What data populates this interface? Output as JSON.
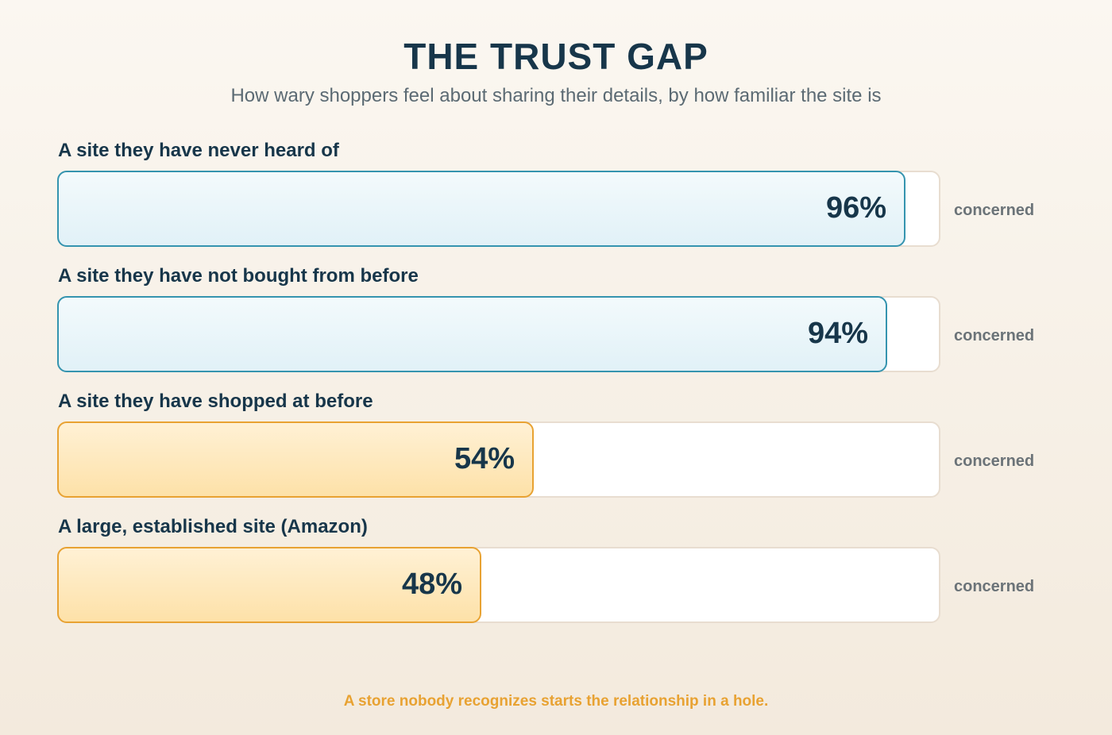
{
  "chart_data": {
    "type": "bar",
    "orientation": "horizontal",
    "title": "THE TRUST GAP",
    "subtitle": "How wary shoppers feel about sharing their details, by how familiar the site is",
    "categories": [
      "A site they have never heard of",
      "A site they have not bought from before",
      "A site they have shopped at before",
      "A large, established site (Amazon)"
    ],
    "values": [
      96,
      94,
      54,
      48
    ],
    "value_labels": [
      "96%",
      "94%",
      "54%",
      "48%"
    ],
    "unit_label": "concerned",
    "xlim": [
      0,
      100
    ],
    "grid": false,
    "annotation": "A store nobody recognizes starts the relationship in a hole.",
    "colors": {
      "unfamiliar_fill": "#e1f1f7",
      "unfamiliar_border": "#3594af",
      "familiar_fill": "#fde1a8",
      "familiar_border": "#e8a232",
      "text": "#17364a",
      "annotation": "#e8a232"
    },
    "fill_styles": [
      "cool",
      "cool",
      "warm",
      "warm"
    ]
  }
}
